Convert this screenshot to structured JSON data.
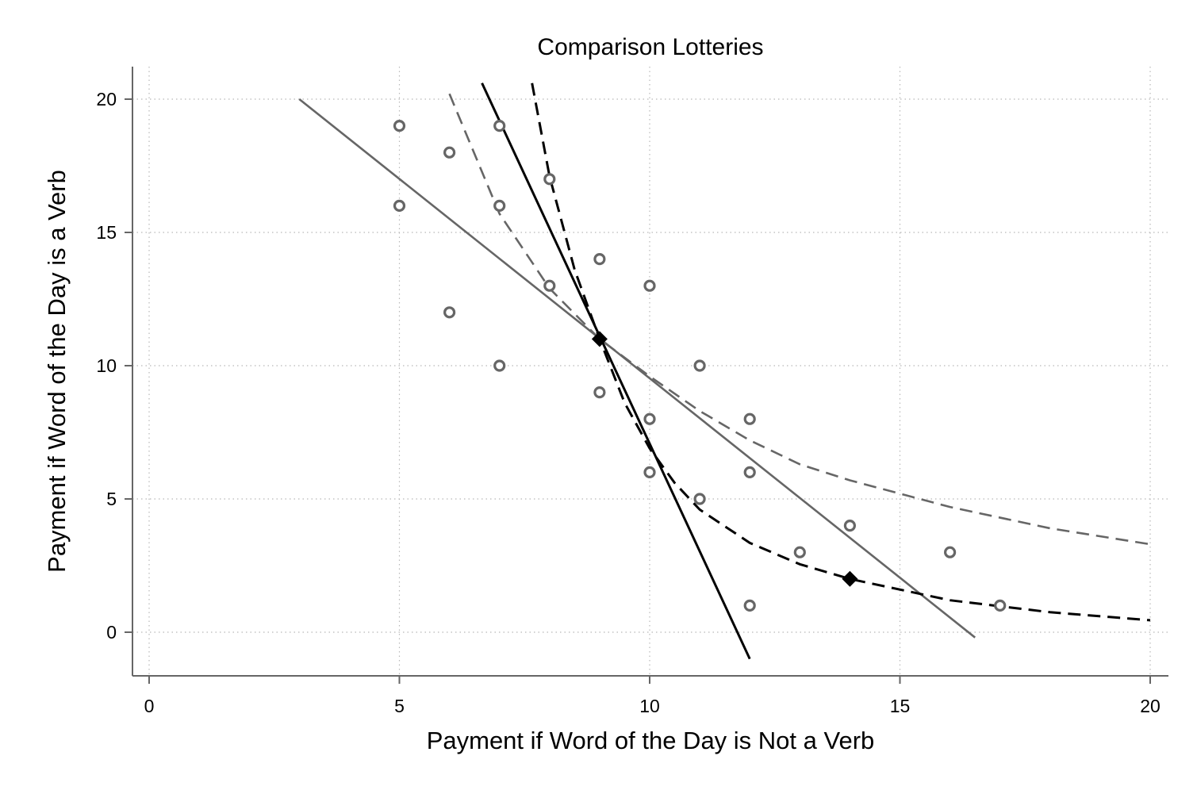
{
  "chart_data": {
    "type": "scatter",
    "title": "Comparison Lotteries",
    "xlabel": "Payment if Word of the Day is Not a Verb",
    "ylabel": "Payment if Word of the Day is a Verb",
    "xlim": [
      0,
      20
    ],
    "ylim": [
      -1.6,
      21.2
    ],
    "xticks": [
      0,
      5,
      10,
      15,
      20
    ],
    "yticks": [
      0,
      5,
      10,
      15,
      20
    ],
    "grid": true,
    "legend": "none",
    "colors": {
      "gray": "#666666",
      "black": "#000000"
    },
    "series": [
      {
        "kind": "points",
        "marker": "hollow-circle",
        "color": "#666666",
        "x": [
          5,
          5,
          6,
          6,
          7,
          7,
          7,
          8,
          8,
          9,
          9,
          10,
          10,
          10,
          11,
          11,
          12,
          12,
          12,
          13,
          14,
          16,
          17
        ],
        "y": [
          19,
          16,
          18,
          12,
          19,
          16,
          10,
          17,
          13,
          14,
          9,
          13,
          8,
          6,
          10,
          5,
          8,
          6,
          1,
          3,
          4,
          3,
          1
        ]
      },
      {
        "kind": "points",
        "marker": "filled-diamond",
        "color": "#000000",
        "x": [
          9,
          14
        ],
        "y": [
          11,
          2
        ]
      },
      {
        "kind": "line",
        "style": "solid",
        "color": "#666666",
        "x": [
          3,
          16.5
        ],
        "y": [
          20,
          -0.2
        ]
      },
      {
        "kind": "line",
        "style": "solid",
        "color": "#000000",
        "x": [
          6.65,
          12
        ],
        "y": [
          20.6,
          -1
        ]
      },
      {
        "kind": "line",
        "style": "dashed",
        "color": "#666666",
        "x": [
          6,
          7,
          8,
          9,
          10,
          11,
          12,
          13,
          14,
          16,
          18,
          20
        ],
        "y": [
          20.2,
          15.7,
          12.9,
          11,
          9.6,
          8.3,
          7.2,
          6.3,
          5.7,
          4.7,
          3.9,
          3.3
        ]
      },
      {
        "kind": "line",
        "style": "dashed",
        "color": "#000000",
        "x": [
          7.65,
          8,
          8.5,
          9,
          9.5,
          10,
          10.5,
          11,
          12,
          13,
          14,
          16,
          18,
          20
        ],
        "y": [
          20.6,
          17.1,
          13.6,
          11,
          8.6,
          6.9,
          5.6,
          4.6,
          3.35,
          2.55,
          2,
          1.2,
          0.75,
          0.45
        ]
      }
    ]
  }
}
